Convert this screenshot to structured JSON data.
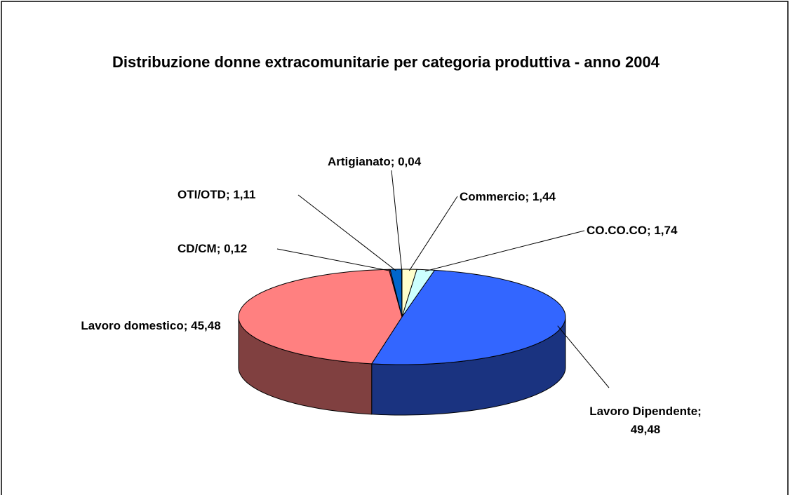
{
  "chart_data": {
    "type": "pie3d",
    "title": "Distribuzione donne extracomunitarie per categoria produttiva - anno 2004",
    "labels": [
      "Commercio; 1,44",
      "CO.CO.CO; 1,74",
      "Lavoro Dipendente; 49,48",
      "Lavoro domestico; 45,48",
      "CD/CM; 0,12",
      "OTI/OTD; 1,11",
      "Artigianato; 0,04"
    ],
    "values": [
      1.44,
      1.74,
      49.48,
      45.48,
      0.12,
      1.11,
      0.04
    ],
    "colors": [
      "#ffffcc",
      "#ccffff",
      "#3366ff",
      "#ff8080",
      "#993366",
      "#0066cc",
      "#c0c0c0"
    ]
  }
}
